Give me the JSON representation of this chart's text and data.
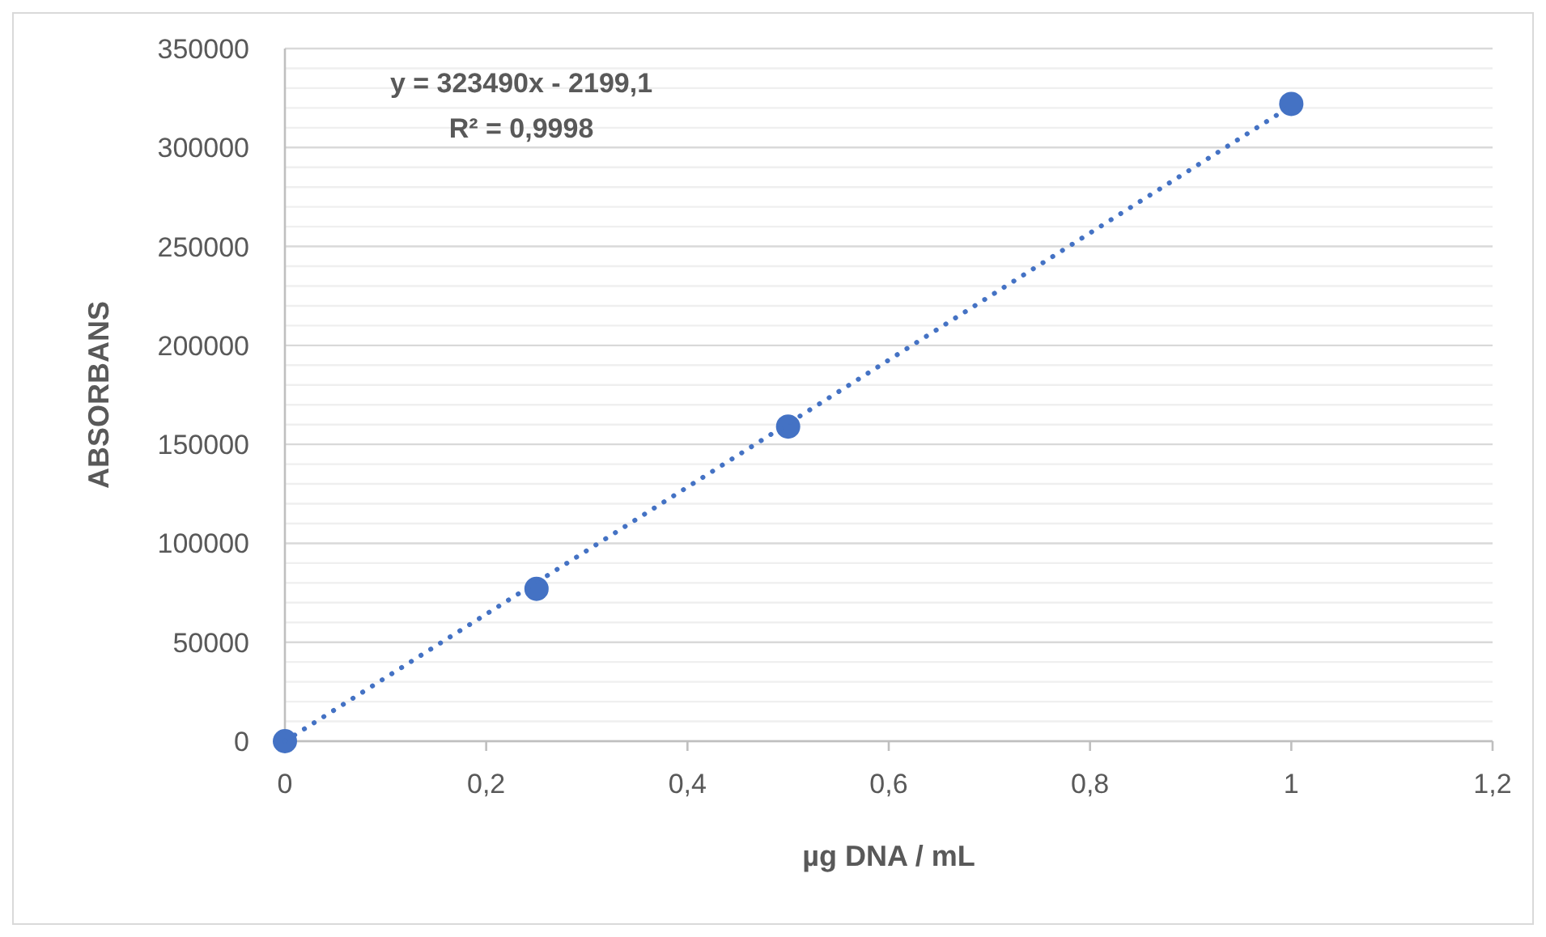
{
  "chart_data": {
    "type": "scatter",
    "xlabel": "µg DNA / mL",
    "ylabel": "ABSORBANS",
    "x": [
      0,
      0.25,
      0.5,
      1
    ],
    "series": [
      {
        "color": "#4472c4",
        "marker": "circle",
        "values": [
          0,
          77000,
          159000,
          322000
        ]
      },
      {
        "type": "line",
        "color": "#4472c4",
        "line_style": "dotted",
        "marker": "none",
        "x": [
          0,
          1
        ],
        "values": [
          0,
          321000
        ]
      }
    ],
    "xlim": [
      0,
      1.2
    ],
    "xticks": [
      0,
      {
        "value": 0.2,
        "label": "0,2"
      },
      {
        "value": 0.4,
        "label": "0,4"
      },
      {
        "value": 0.6,
        "label": "0,6"
      },
      {
        "value": 0.8,
        "label": "0,8"
      },
      1,
      {
        "value": 1.2,
        "label": "1,2"
      }
    ],
    "ylim": [
      0,
      350000
    ],
    "yticks": [
      0,
      {
        "value": 10000,
        "label": null
      },
      {
        "value": 20000,
        "label": null
      },
      {
        "value": 30000,
        "label": null
      },
      {
        "value": 40000,
        "label": null
      },
      50000,
      {
        "value": 60000,
        "label": null
      },
      {
        "value": 70000,
        "label": null
      },
      {
        "value": 80000,
        "label": null
      },
      {
        "value": 90000,
        "label": null
      },
      100000,
      {
        "value": 110000,
        "label": null
      },
      {
        "value": 120000,
        "label": null
      },
      {
        "value": 130000,
        "label": null
      },
      {
        "value": 140000,
        "label": null
      },
      150000,
      {
        "value": 160000,
        "label": null
      },
      {
        "value": 170000,
        "label": null
      },
      {
        "value": 180000,
        "label": null
      },
      {
        "value": 190000,
        "label": null
      },
      200000,
      {
        "value": 210000,
        "label": null
      },
      {
        "value": 220000,
        "label": null
      },
      {
        "value": 230000,
        "label": null
      },
      {
        "value": 240000,
        "label": null
      },
      250000,
      {
        "value": 260000,
        "label": null
      },
      {
        "value": 270000,
        "label": null
      },
      {
        "value": 280000,
        "label": null
      },
      {
        "value": 290000,
        "label": null
      },
      300000,
      {
        "value": 310000,
        "label": null
      },
      {
        "value": 320000,
        "label": null
      },
      {
        "value": 330000,
        "label": null
      },
      {
        "value": 340000,
        "label": null
      },
      350000
    ],
    "grid": "y",
    "annotations": [
      "y = 323490x - 2199,1",
      "R² = 0,9998"
    ]
  }
}
